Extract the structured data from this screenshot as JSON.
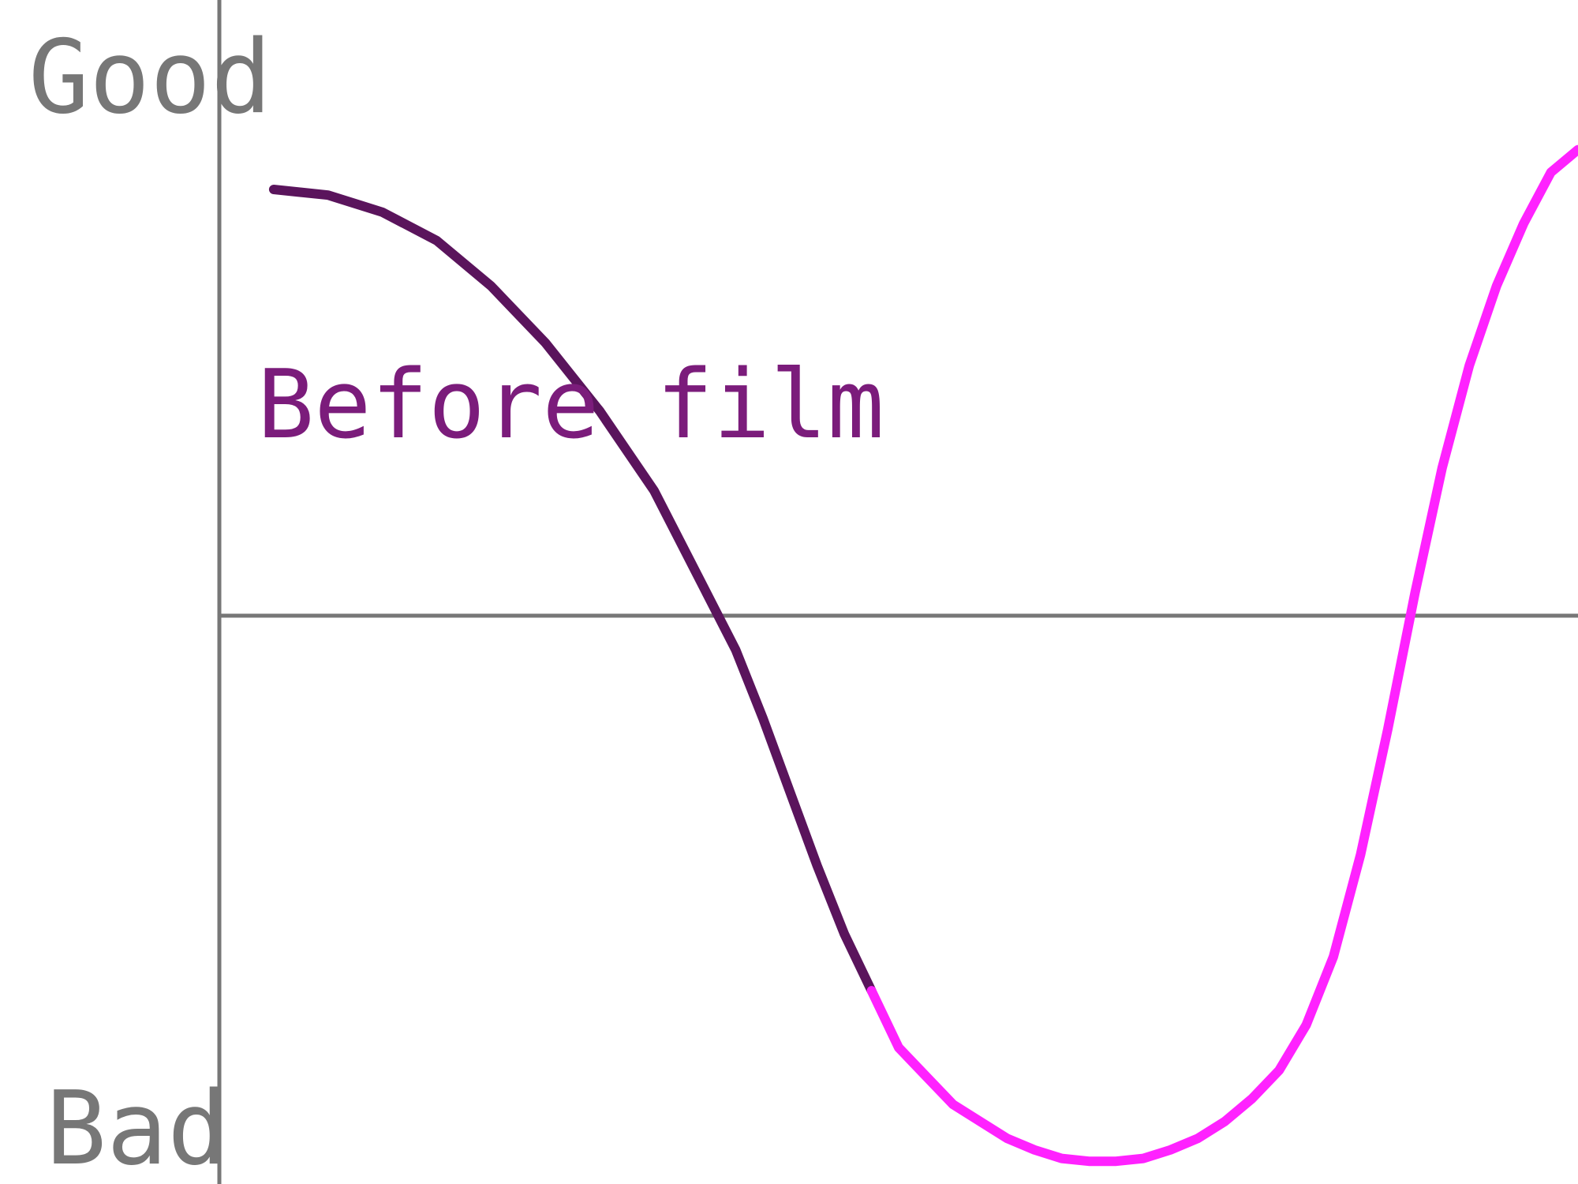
{
  "colors": {
    "axis": "#777777",
    "text_gray": "#777777",
    "annotation": "#7b1c7b",
    "series_before": "#5a145c",
    "series_after": "#ff22ff"
  },
  "chart_data": {
    "type": "line",
    "title": "",
    "xlabel": "",
    "ylabel": "",
    "y_axis_top_label": "Good",
    "y_axis_bottom_label": "Bad",
    "annotations": [
      {
        "text": "Before film"
      }
    ],
    "xlim": [
      0,
      100
    ],
    "ylim": [
      -10,
      10
    ],
    "zero_line": 0,
    "grid": false,
    "legend": "none",
    "series": [
      {
        "x": [
          4,
          8,
          12,
          16,
          20,
          24,
          28,
          32,
          35,
          38,
          40,
          42,
          44,
          46,
          48
        ],
        "y": [
          7.5,
          7.4,
          7.1,
          6.6,
          5.8,
          4.8,
          3.6,
          2.2,
          0.8,
          -0.6,
          -1.8,
          -3.1,
          -4.4,
          -5.6,
          -6.6
        ]
      },
      {
        "x": [
          48,
          50,
          52,
          54,
          56,
          58,
          60,
          62,
          64,
          66,
          68,
          70,
          72,
          74,
          76,
          78,
          80,
          82,
          84,
          86,
          88,
          90,
          92,
          94,
          96,
          98,
          100
        ],
        "y": [
          -6.6,
          -7.6,
          -8.1,
          -8.6,
          -8.9,
          -9.2,
          -9.4,
          -9.55,
          -9.6,
          -9.6,
          -9.55,
          -9.4,
          -9.2,
          -8.9,
          -8.5,
          -8.0,
          -7.2,
          -6.0,
          -4.2,
          -2.0,
          0.4,
          2.6,
          4.4,
          5.8,
          6.9,
          7.8,
          8.2
        ]
      }
    ]
  }
}
